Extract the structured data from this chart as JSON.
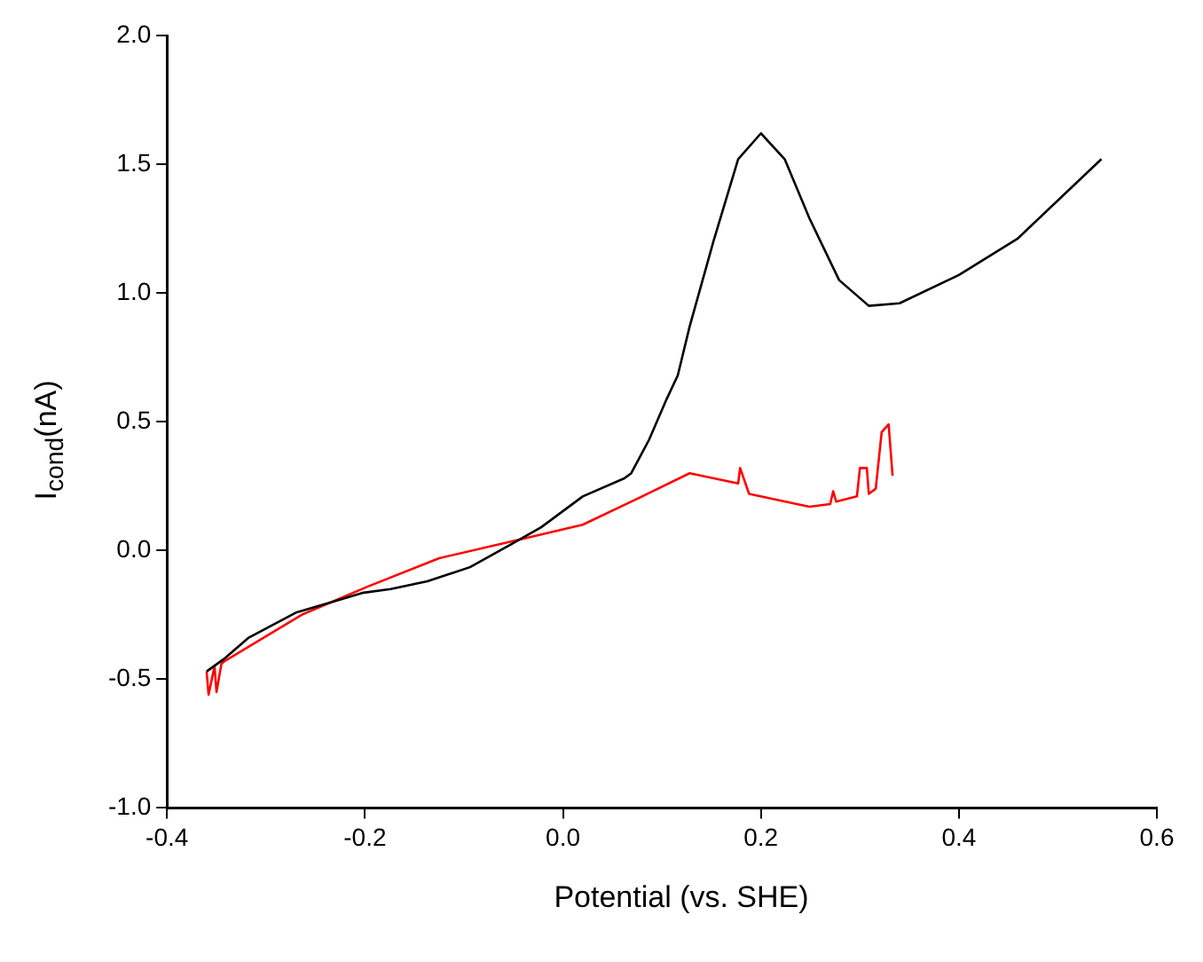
{
  "chart_data": {
    "type": "line",
    "xlabel": "Potential (vs. SHE)",
    "ylabel": "I$_{cond}$(nA)",
    "xlim": [
      -0.4,
      0.6
    ],
    "xticks": [
      -0.4,
      -0.2,
      {
        "value": 0,
        "label": "0.0"
      },
      0.2,
      0.4,
      0.6
    ],
    "ylim": [
      -1.0,
      2.0
    ],
    "yticks": [
      {
        "value": -1,
        "label": "-1.0"
      },
      -0.5,
      {
        "value": 0,
        "label": "0.0"
      },
      0.5,
      {
        "value": 1,
        "label": "1.0"
      },
      1.5,
      {
        "value": 2,
        "label": "2.0"
      }
    ],
    "grid": false,
    "legend": false,
    "marker": "none",
    "line_style": "solid",
    "series": [
      {
        "color": "#000000",
        "x": [
          -0.36,
          -0.342,
          -0.318,
          -0.269,
          -0.233,
          -0.203,
          -0.174,
          -0.137,
          -0.094,
          -0.052,
          -0.022,
          0.02,
          0.062,
          0.069,
          0.087,
          0.105,
          0.116,
          0.128,
          0.152,
          0.177,
          0.2,
          0.224,
          0.249,
          0.279,
          0.309,
          0.34,
          0.4,
          0.459,
          0.544
        ],
        "values": [
          -0.47,
          -0.42,
          -0.34,
          -0.24,
          -0.2,
          -0.165,
          -0.15,
          -0.12,
          -0.065,
          0.025,
          0.09,
          0.21,
          0.28,
          0.3,
          0.43,
          0.59,
          0.68,
          0.87,
          1.2,
          1.52,
          1.62,
          1.52,
          1.29,
          1.05,
          0.95,
          0.96,
          1.07,
          1.21,
          1.52
        ]
      },
      {
        "color": "#ff0000",
        "x": [
          -0.36,
          -0.358,
          -0.352,
          -0.35,
          -0.345,
          -0.342,
          -0.264,
          -0.197,
          -0.125,
          -0.04,
          0.02,
          0.08,
          0.128,
          0.177,
          0.179,
          0.188,
          0.249,
          0.27,
          0.273,
          0.276,
          0.297,
          0.3,
          0.307,
          0.309,
          0.316,
          0.322,
          0.329,
          0.333
        ],
        "values": [
          -0.47,
          -0.56,
          -0.45,
          -0.55,
          -0.44,
          -0.43,
          -0.25,
          -0.14,
          -0.03,
          0.046,
          0.1,
          0.21,
          0.3,
          0.26,
          0.32,
          0.22,
          0.17,
          0.18,
          0.23,
          0.19,
          0.21,
          0.32,
          0.32,
          0.22,
          0.24,
          0.46,
          0.49,
          0.29
        ]
      }
    ]
  }
}
